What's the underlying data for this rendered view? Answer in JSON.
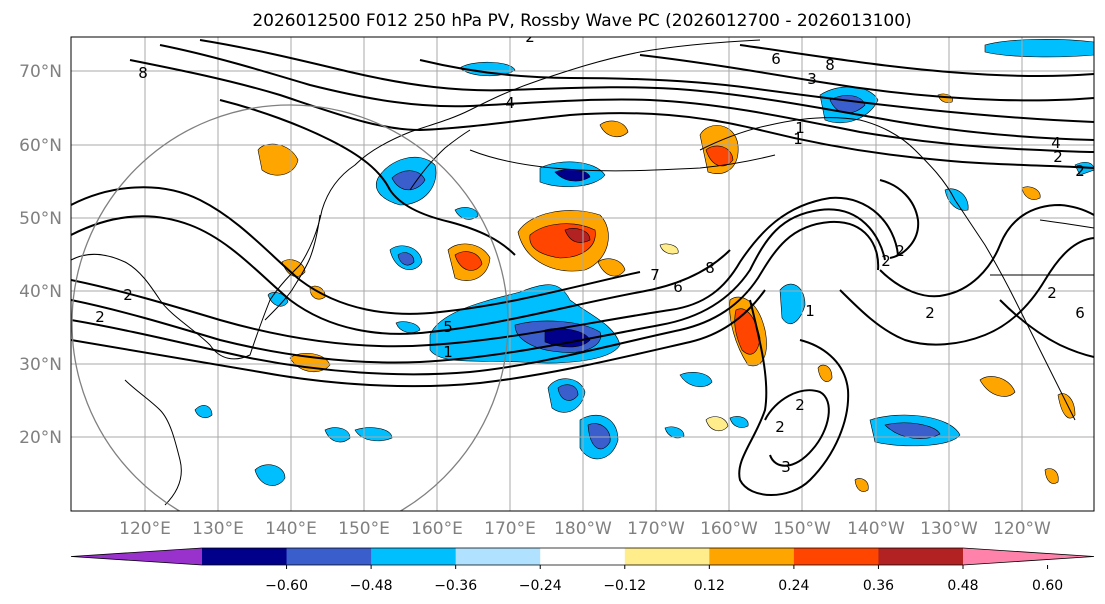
{
  "title": "2026012500 F012 250 hPa PV, Rossby Wave PC (2026012700 - 2026013100)",
  "lat_labels": [
    "70°N",
    "60°N",
    "50°N",
    "40°N",
    "30°N",
    "20°N"
  ],
  "lon_labels": [
    "120°E",
    "130°E",
    "140°E",
    "150°E",
    "160°E",
    "170°E",
    "180°W",
    "170°W",
    "160°W",
    "150°W",
    "140°W",
    "130°W",
    "120°W"
  ],
  "colorbar": {
    "colors": [
      "#9932cc",
      "#00008b",
      "#3a5fcd",
      "#00bfff",
      "#b0e2ff",
      "#ffffff",
      "#ffec8b",
      "#ffa500",
      "#ff4500",
      "#b22222",
      "#ff82ab"
    ],
    "ticks": [
      "−0.60",
      "−0.48",
      "−0.36",
      "−0.24",
      "−0.12",
      "0.12",
      "0.24",
      "0.36",
      "0.48",
      "0.60"
    ]
  },
  "contour_labels": [
    "2",
    "4",
    "8",
    "6",
    "1",
    "2",
    "4",
    "2",
    "2",
    "1",
    "1",
    "7",
    "6",
    "5",
    "1",
    "8",
    "3",
    "2",
    "2",
    "3",
    "2",
    "6",
    "2",
    "8",
    "2",
    "2",
    "2"
  ],
  "colors": {
    "neg_light": "#b0e2ff",
    "neg_mid": "#00bfff",
    "neg_strong": "#3a5fcd",
    "neg_max": "#00008b",
    "pos_light": "#ffec8b",
    "pos_mid": "#ffa500",
    "pos_strong": "#ff4500",
    "pos_max": "#b22222",
    "grid": "#a9a9a9"
  }
}
